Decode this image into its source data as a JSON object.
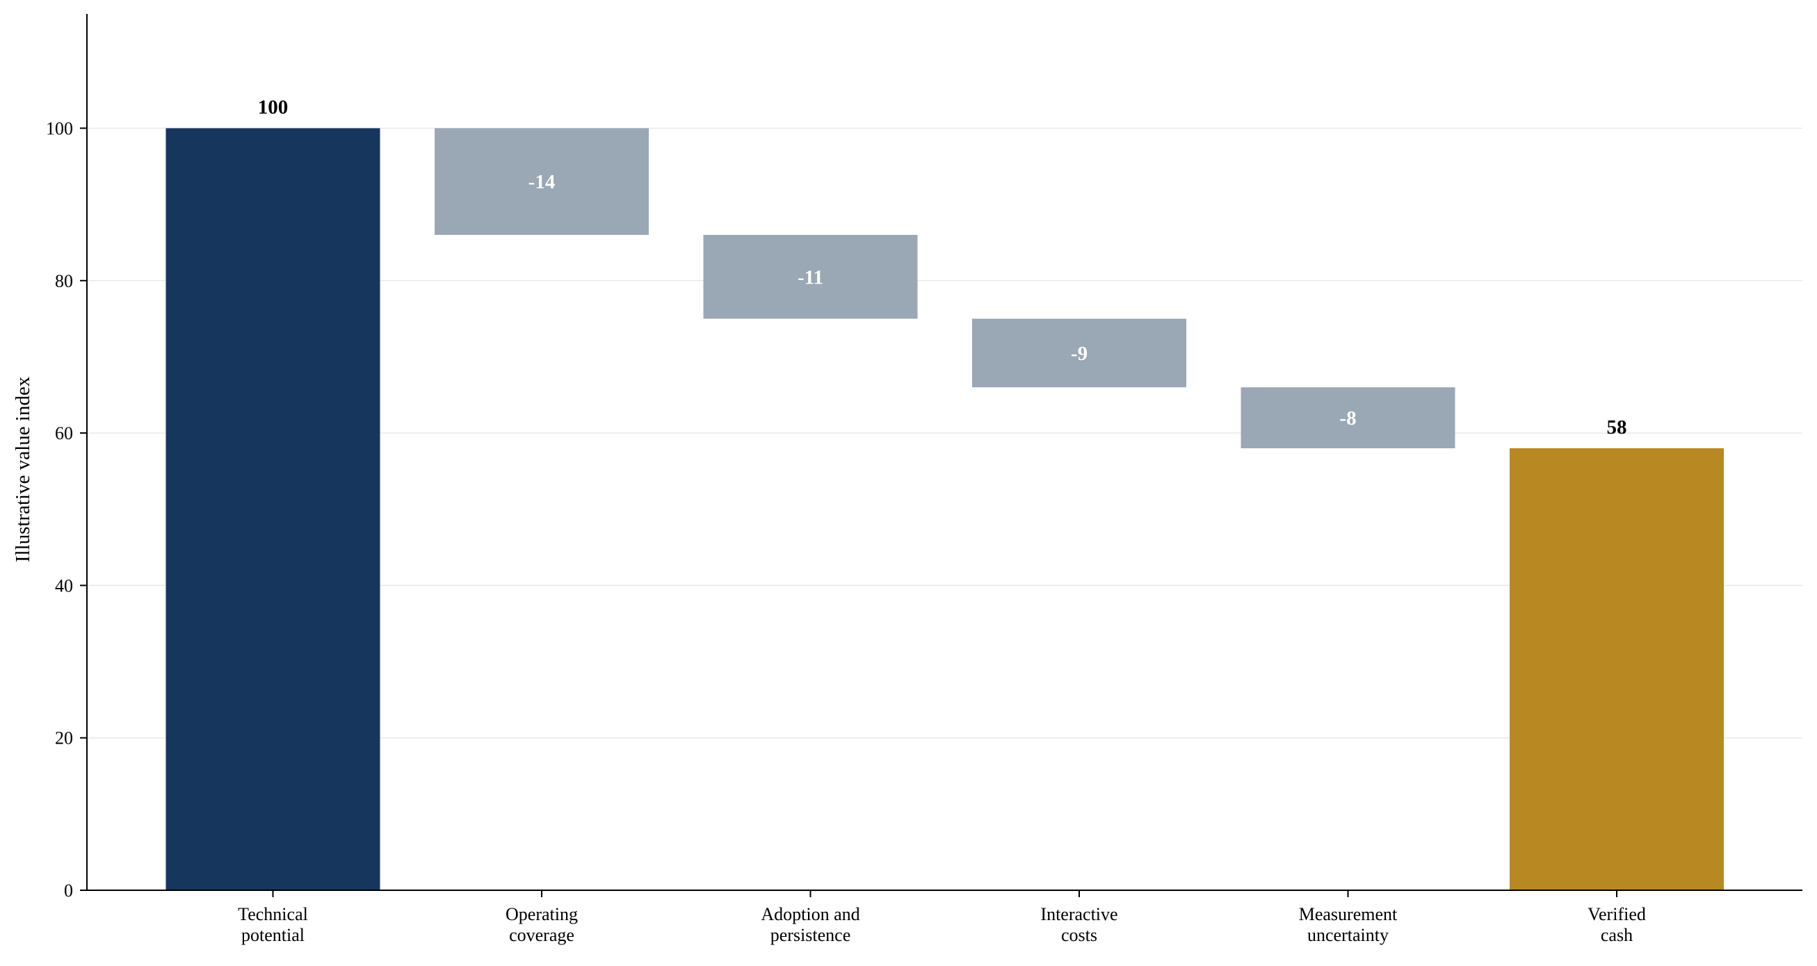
{
  "chart_data": {
    "type": "bar",
    "subtype": "waterfall",
    "title": "",
    "xlabel": "",
    "ylabel": "Illustrative value index",
    "ylim": [
      0,
      115
    ],
    "yticks": [
      0,
      20,
      40,
      60,
      80,
      100
    ],
    "grid": "horizontal",
    "legend": "none",
    "categories": [
      [
        "Technical",
        "potential"
      ],
      [
        "Operating",
        "coverage"
      ],
      [
        "Adoption and",
        "persistence"
      ],
      [
        "Interactive",
        "costs"
      ],
      [
        "Measurement",
        "uncertainty"
      ],
      [
        "Verified",
        "cash"
      ]
    ],
    "steps": [
      {
        "kind": "total",
        "start": 0,
        "end": 100,
        "label": "100",
        "color": "#17365d"
      },
      {
        "kind": "delta",
        "start": 100,
        "end": 86,
        "label": "-14",
        "color": "#9aa8b5"
      },
      {
        "kind": "delta",
        "start": 86,
        "end": 75,
        "label": "-11",
        "color": "#9aa8b5"
      },
      {
        "kind": "delta",
        "start": 75,
        "end": 66,
        "label": "-9",
        "color": "#9aa8b5"
      },
      {
        "kind": "delta",
        "start": 66,
        "end": 58,
        "label": "-8",
        "color": "#9aa8b5"
      },
      {
        "kind": "total",
        "start": 0,
        "end": 58,
        "label": "58",
        "color": "#b88822"
      }
    ],
    "colors": {
      "grid": "#e9e9e9",
      "axis": "#000000"
    }
  }
}
